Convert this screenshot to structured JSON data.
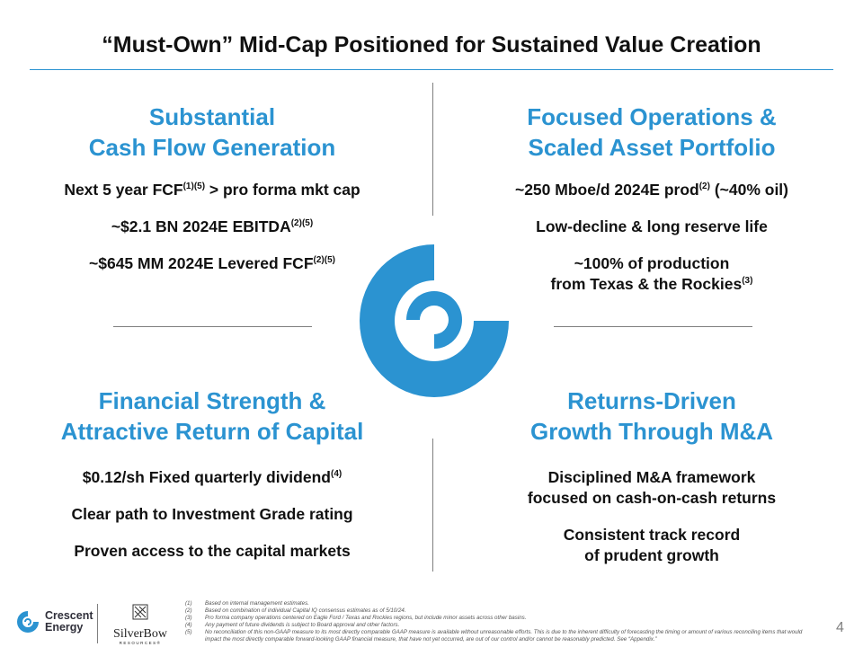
{
  "title": "“Must-Own” Mid-Cap Positioned for Sustained Value Creation",
  "quadrants": {
    "q1": {
      "heading_line1": "Substantial",
      "heading_line2": "Cash Flow Generation",
      "points": [
        {
          "text": "Next 5 year FCF",
          "sup": "(1)(5)",
          "after": " > pro forma mkt cap"
        },
        {
          "text": "~$2.1 BN 2024E EBITDA",
          "sup": "(2)(5)",
          "after": ""
        },
        {
          "text": "~$645 MM 2024E Levered FCF",
          "sup": "(2)(5)",
          "after": ""
        }
      ]
    },
    "q2": {
      "heading_line1": "Focused Operations &",
      "heading_line2": "Scaled Asset Portfolio",
      "points": [
        {
          "text": "~250 Mboe/d 2024E prod",
          "sup": "(2)",
          "after": " (~40% oil)"
        },
        {
          "text": "Low-decline & long reserve life"
        },
        {
          "line1": "~100% of production",
          "text": "from Texas & the Rockies",
          "sup": "(3)"
        }
      ]
    },
    "q3": {
      "heading_line1": "Financial Strength &",
      "heading_line2": "Attractive Return of Capital",
      "points": [
        {
          "text": "$0.12/sh Fixed quarterly dividend",
          "sup": "(4)"
        },
        {
          "text": "Clear path to Investment Grade rating"
        },
        {
          "text": "Proven access to the capital markets"
        }
      ]
    },
    "q4": {
      "heading_line1": "Returns-Driven",
      "heading_line2": "Growth Through M&A",
      "points": [
        {
          "line1": "Disciplined M&A framework",
          "line2": "focused on cash-on-cash returns"
        },
        {
          "line1": "Consistent track record",
          "line2": "of prudent growth"
        }
      ]
    }
  },
  "footer": {
    "brand_line1": "Crescent",
    "brand_line2": "Energy",
    "partner_name": "SilverBow",
    "partner_sub": "RESOURCES®",
    "notes": [
      {
        "num": "(1)",
        "text": "Based on internal management estimates."
      },
      {
        "num": "(2)",
        "text": "Based on combination of individual Capital IQ consensus estimates as of 5/10/24."
      },
      {
        "num": "(3)",
        "text": "Pro forma company operations centered on Eagle Ford / Texas and Rockies regions, but include minor assets across other basins."
      },
      {
        "num": "(4)",
        "text": "Any payment of future dividends is subject to Board approval and other factors."
      },
      {
        "num": "(5)",
        "text": "No reconciliation of this non-GAAP measure to its most directly comparable GAAP measure is available without unreasonable efforts. This is due to the inherent difficulty of forecasting the timing or amount of various reconciling items that would impact the most directly comparable forward-looking GAAP financial measure, that have not yet occurred, are out of our control and/or cannot be reasonably predicted. See “Appendix.”"
      }
    ],
    "page_number": "4"
  },
  "colors": {
    "accent": "#2b93d1",
    "rule": "#7f7f7f"
  },
  "icons": {
    "center": "crescent-ring-logo",
    "brand": "crescent-logo-icon",
    "partner": "silverbow-emblem-icon"
  }
}
